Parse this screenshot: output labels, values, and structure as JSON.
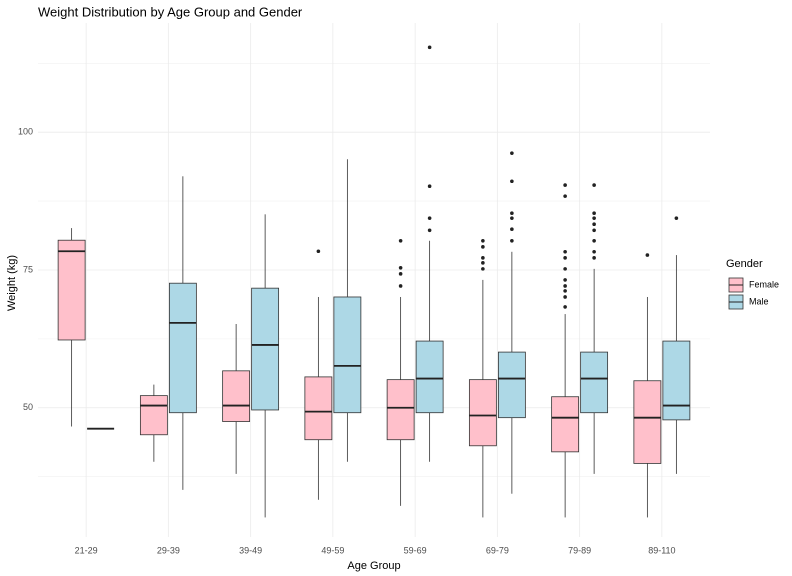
{
  "chart_data": {
    "type": "boxplot",
    "title": "Weight Distribution by Age Group and Gender",
    "x_label": "Age Group",
    "y_label": "Weight (kg)",
    "legend_title": "Gender",
    "categories": [
      "21-29",
      "29-39",
      "39-49",
      "49-59",
      "59-69",
      "69-79",
      "79-89",
      "89-110"
    ],
    "ylim": [
      28,
      118
    ],
    "yticks": [
      50,
      75,
      100
    ],
    "grid": true,
    "legend": "right",
    "series": [
      {
        "name": "Female",
        "color": "#ffc0cb",
        "boxes": [
          {
            "min": 46.6,
            "q1": 62.3,
            "median": 78.4,
            "q3": 80.4,
            "max": 82.6,
            "outliers": []
          },
          {
            "min": 40.2,
            "q1": 45.1,
            "median": 50.4,
            "q3": 52.2,
            "max": 54.2,
            "outliers": []
          },
          {
            "min": 38.0,
            "q1": 47.5,
            "median": 50.4,
            "q3": 56.7,
            "max": 65.2,
            "outliers": []
          },
          {
            "min": 33.3,
            "q1": 44.2,
            "median": 49.3,
            "q3": 55.6,
            "max": 70.1,
            "outliers": [
              78.4
            ]
          },
          {
            "min": 32.2,
            "q1": 44.2,
            "median": 50.0,
            "q3": 55.1,
            "max": 70.1,
            "outliers": [
              80.3,
              75.4,
              74.3,
              72.1
            ]
          },
          {
            "min": 30.1,
            "q1": 43.1,
            "median": 48.6,
            "q3": 55.1,
            "max": 73.2,
            "outliers": [
              80.3,
              79.2,
              77.2,
              76.3,
              75.2
            ]
          },
          {
            "min": 30.1,
            "q1": 42.0,
            "median": 48.2,
            "q3": 52.0,
            "max": 67.0,
            "outliers": [
              90.4,
              88.4,
              78.3,
              77.2,
              75.2,
              73.2,
              72.1,
              71.2,
              70.1,
              68.3
            ]
          },
          {
            "min": 30.1,
            "q1": 39.9,
            "median": 48.2,
            "q3": 54.9,
            "max": 70.1,
            "outliers": [
              77.7
            ]
          }
        ]
      },
      {
        "name": "Male",
        "color": "#add8e6",
        "boxes": [
          {
            "min": 46.2,
            "q1": 46.2,
            "median": 46.2,
            "q3": 46.2,
            "max": 46.2,
            "outliers": []
          },
          {
            "min": 35.1,
            "q1": 49.1,
            "median": 65.4,
            "q3": 72.6,
            "max": 92.0,
            "outliers": []
          },
          {
            "min": 30.1,
            "q1": 49.6,
            "median": 61.4,
            "q3": 71.7,
            "max": 85.1,
            "outliers": []
          },
          {
            "min": 40.2,
            "q1": 49.1,
            "median": 57.6,
            "q3": 70.1,
            "max": 95.1,
            "outliers": []
          },
          {
            "min": 40.2,
            "q1": 49.1,
            "median": 55.3,
            "q3": 62.1,
            "max": 80.3,
            "outliers": [
              115.4,
              90.2,
              84.4,
              82.2
            ]
          },
          {
            "min": 34.4,
            "q1": 48.2,
            "median": 55.3,
            "q3": 60.1,
            "max": 78.3,
            "outliers": [
              96.2,
              91.1,
              85.3,
              84.4,
              82.4,
              80.3
            ]
          },
          {
            "min": 38.0,
            "q1": 49.1,
            "median": 55.3,
            "q3": 60.1,
            "max": 75.2,
            "outliers": [
              90.4,
              85.3,
              84.4,
              83.3,
              82.2,
              80.3,
              78.3,
              77.2
            ]
          },
          {
            "min": 38.0,
            "q1": 47.8,
            "median": 50.4,
            "q3": 62.1,
            "max": 77.7,
            "outliers": [
              84.4
            ]
          }
        ]
      }
    ]
  }
}
